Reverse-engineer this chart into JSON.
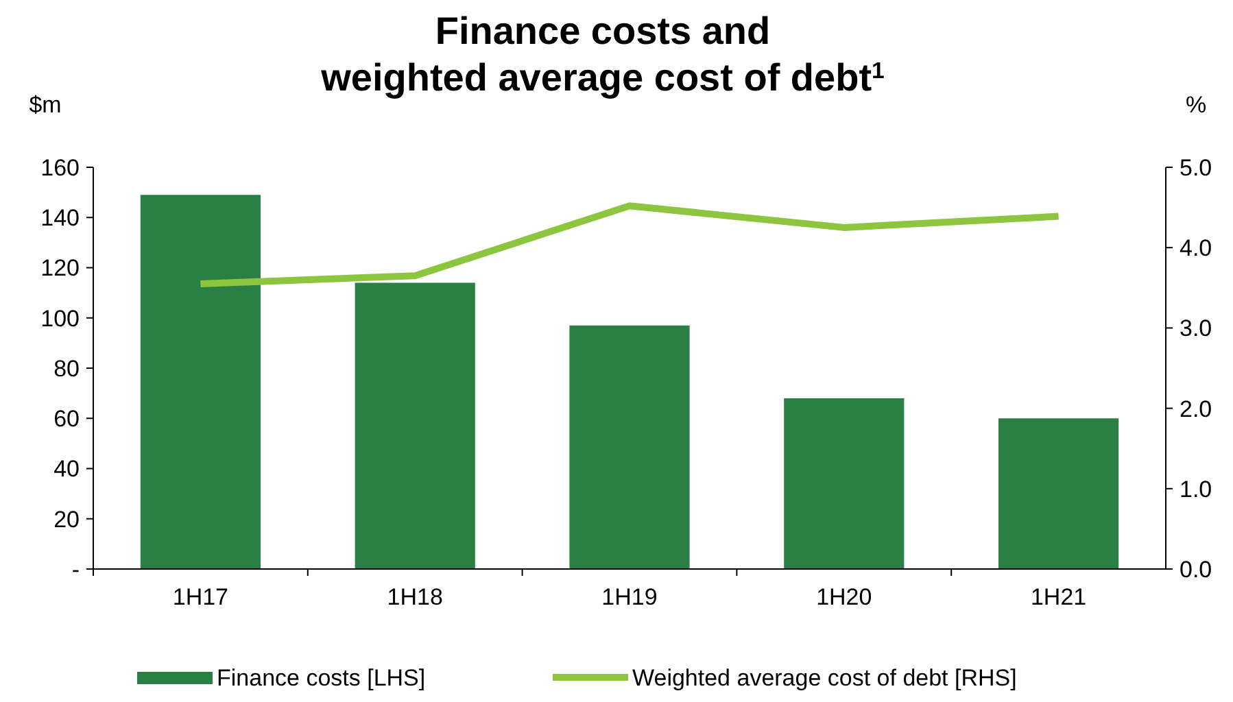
{
  "chart_data": {
    "type": "bar",
    "title": "Finance costs and\nweighted average cost of debt$^{1}$",
    "ylabel": "$m",
    "y2label": "%",
    "categories": [
      "1H17",
      "1H18",
      "1H19",
      "1H20",
      "1H21"
    ],
    "series": [
      {
        "name": "Finance costs [LHS]",
        "color": "#2a7f45",
        "values": [
          149,
          114,
          97,
          68,
          60
        ]
      },
      {
        "name": "Weighted average cost of debt [RHS]",
        "type": "line",
        "axis": "y2",
        "color": "#8cc63f",
        "values": [
          3.55,
          3.65,
          4.52,
          4.25,
          4.39
        ]
      }
    ],
    "ylim": [
      0,
      160
    ],
    "yticks": [
      {
        "value": 0,
        "label": "-"
      },
      20,
      40,
      60,
      80,
      100,
      120,
      140,
      160
    ],
    "y2lim": [
      0,
      5
    ],
    "y2ticks": [
      {
        "value": 0,
        "label": "0.0"
      },
      {
        "value": 1,
        "label": "1.0"
      },
      {
        "value": 2,
        "label": "2.0"
      },
      {
        "value": 3,
        "label": "3.0"
      },
      {
        "value": 4,
        "label": "4.0"
      },
      {
        "value": 5,
        "label": "5.0"
      }
    ],
    "grid": false,
    "legend": "bottom",
    "marker": "none",
    "line_style": "solid"
  }
}
